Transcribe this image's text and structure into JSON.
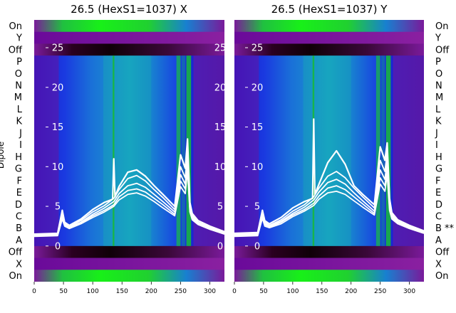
{
  "chart_data": [
    {
      "type": "heatmap",
      "title": "26.5 (HexS1=1037) X",
      "ylabel": "Dipole",
      "rows": [
        "On",
        "Y",
        "Off",
        "P",
        "O",
        "N",
        "M",
        "L",
        "K",
        "J",
        "I",
        "H",
        "G",
        "F",
        "E",
        "D",
        "C",
        "B",
        "A",
        "Off",
        "X",
        "On"
      ],
      "x_ticks": [
        0,
        50,
        100,
        150,
        200,
        250,
        300
      ],
      "xlim": [
        0,
        325
      ],
      "overlay_ticks": [
        25,
        20,
        15,
        10,
        5,
        0
      ],
      "overlay_ylim": [
        -4.5,
        28.5
      ],
      "overlay_series": [
        {
          "x": [
            0,
            40,
            48,
            52,
            60,
            80,
            100,
            120,
            134,
            136,
            138,
            145,
            160,
            175,
            190,
            205,
            220,
            240,
            250,
            258,
            262,
            266,
            270,
            280,
            300,
            325
          ],
          "y": [
            1.5,
            1.6,
            4.5,
            3.0,
            2.6,
            3.4,
            4.6,
            5.5,
            5.9,
            11.0,
            6.2,
            7.5,
            9.3,
            9.6,
            8.8,
            7.6,
            6.5,
            5.0,
            11.5,
            9.8,
            13.5,
            5.5,
            4.1,
            3.2,
            2.5,
            1.8
          ]
        },
        {
          "x": [
            0,
            40,
            48,
            52,
            60,
            80,
            100,
            120,
            136,
            145,
            160,
            175,
            190,
            205,
            220,
            240,
            250,
            258,
            262,
            266,
            270,
            280,
            300,
            325
          ],
          "y": [
            1.4,
            1.5,
            4.0,
            2.8,
            2.5,
            3.2,
            4.3,
            5.1,
            6.0,
            7.1,
            8.5,
            8.9,
            8.2,
            7.1,
            6.1,
            4.6,
            10.0,
            8.6,
            12.0,
            5.0,
            3.9,
            3.0,
            2.4,
            1.7
          ]
        },
        {
          "x": [
            0,
            40,
            48,
            52,
            60,
            80,
            100,
            120,
            136,
            145,
            160,
            175,
            190,
            205,
            220,
            240,
            250,
            258,
            262,
            266,
            270,
            280,
            300,
            325
          ],
          "y": [
            1.3,
            1.4,
            3.8,
            2.7,
            2.4,
            3.0,
            4.0,
            4.8,
            5.6,
            6.6,
            7.6,
            7.9,
            7.4,
            6.5,
            5.6,
            4.3,
            9.0,
            7.8,
            11.0,
            4.7,
            3.7,
            2.9,
            2.3,
            1.6
          ]
        },
        {
          "x": [
            0,
            40,
            48,
            52,
            60,
            80,
            100,
            120,
            136,
            145,
            160,
            175,
            190,
            205,
            220,
            240,
            250,
            258,
            262,
            266,
            270,
            280,
            300,
            325
          ],
          "y": [
            1.3,
            1.4,
            3.6,
            2.6,
            2.3,
            2.9,
            3.8,
            4.5,
            5.2,
            6.2,
            7.0,
            7.2,
            6.8,
            6.0,
            5.2,
            4.0,
            8.2,
            7.2,
            10.2,
            4.5,
            3.5,
            2.8,
            2.2,
            1.6
          ]
        },
        {
          "x": [
            0,
            40,
            48,
            52,
            60,
            80,
            100,
            120,
            136,
            145,
            160,
            175,
            190,
            205,
            220,
            240,
            250,
            258,
            262,
            266,
            270,
            280,
            300,
            325
          ],
          "y": [
            1.2,
            1.3,
            3.4,
            2.5,
            2.2,
            2.8,
            3.6,
            4.3,
            5.0,
            5.8,
            6.5,
            6.7,
            6.3,
            5.6,
            4.8,
            3.8,
            7.5,
            6.6,
            9.5,
            4.3,
            3.3,
            2.7,
            2.1,
            1.5
          ]
        }
      ]
    },
    {
      "type": "heatmap",
      "title": "26.5 (HexS1=1037) Y",
      "rows": [
        "On",
        "Y",
        "Off",
        "P",
        "O",
        "N",
        "M",
        "L",
        "K",
        "J",
        "I",
        "H",
        "G",
        "F",
        "E",
        "D",
        "C",
        "B **",
        "A",
        "Off",
        "X",
        "On"
      ],
      "x_ticks": [
        0,
        50,
        100,
        150,
        200,
        250,
        300
      ],
      "xlim": [
        0,
        325
      ],
      "overlay_ticks": [
        25,
        20,
        15,
        10,
        5,
        0
      ],
      "overlay_ylim": [
        -4.5,
        28.5
      ],
      "overlay_series": [
        {
          "x": [
            0,
            40,
            48,
            52,
            60,
            80,
            100,
            120,
            134,
            136,
            138,
            145,
            160,
            175,
            190,
            205,
            220,
            240,
            250,
            258,
            262,
            266,
            270,
            280,
            300,
            325
          ],
          "y": [
            1.6,
            1.7,
            4.5,
            3.2,
            2.8,
            3.6,
            4.8,
            5.6,
            6.0,
            16.0,
            6.5,
            7.8,
            10.5,
            12.0,
            10.3,
            7.6,
            6.5,
            5.2,
            12.5,
            10.8,
            13.0,
            6.0,
            4.2,
            3.3,
            2.6,
            1.9
          ]
        },
        {
          "x": [
            0,
            40,
            48,
            52,
            60,
            80,
            100,
            120,
            136,
            145,
            160,
            175,
            190,
            205,
            220,
            240,
            250,
            258,
            262,
            266,
            270,
            280,
            300,
            325
          ],
          "y": [
            1.5,
            1.6,
            4.2,
            3.0,
            2.6,
            3.3,
            4.4,
            5.2,
            6.2,
            7.3,
            8.8,
            9.4,
            8.6,
            7.3,
            6.2,
            4.8,
            10.8,
            9.4,
            11.8,
            5.5,
            4.0,
            3.1,
            2.5,
            1.8
          ]
        },
        {
          "x": [
            0,
            40,
            48,
            52,
            60,
            80,
            100,
            120,
            136,
            145,
            160,
            175,
            190,
            205,
            220,
            240,
            250,
            258,
            262,
            266,
            270,
            280,
            300,
            325
          ],
          "y": [
            1.4,
            1.5,
            3.9,
            2.8,
            2.5,
            3.1,
            4.1,
            4.9,
            5.8,
            6.8,
            8.0,
            8.4,
            7.8,
            6.7,
            5.7,
            4.4,
            9.6,
            8.4,
            10.8,
            5.1,
            3.8,
            3.0,
            2.4,
            1.7
          ]
        },
        {
          "x": [
            0,
            40,
            48,
            52,
            60,
            80,
            100,
            120,
            136,
            145,
            160,
            175,
            190,
            205,
            220,
            240,
            250,
            258,
            262,
            266,
            270,
            280,
            300,
            325
          ],
          "y": [
            1.3,
            1.4,
            3.7,
            2.7,
            2.4,
            3.0,
            3.9,
            4.6,
            5.4,
            6.3,
            7.3,
            7.6,
            7.1,
            6.2,
            5.3,
            4.1,
            8.6,
            7.6,
            9.8,
            4.8,
            3.6,
            2.9,
            2.3,
            1.7
          ]
        },
        {
          "x": [
            0,
            40,
            48,
            52,
            60,
            80,
            100,
            120,
            136,
            145,
            160,
            175,
            190,
            205,
            220,
            240,
            250,
            258,
            262,
            266,
            270,
            280,
            300,
            325
          ],
          "y": [
            1.2,
            1.3,
            3.5,
            2.5,
            2.3,
            2.8,
            3.7,
            4.4,
            5.1,
            5.9,
            6.7,
            6.9,
            6.5,
            5.7,
            4.9,
            3.9,
            7.8,
            6.9,
            9.0,
            4.5,
            3.4,
            2.8,
            2.2,
            1.6
          ]
        }
      ]
    }
  ],
  "colors": {
    "purple": "#7a1a9a",
    "dark": "#1a0010",
    "blue": "#1030d8",
    "lightblue": "#2a90d0",
    "teal": "#10b8a8",
    "green": "#18e818",
    "overlay": "#ffffff"
  }
}
